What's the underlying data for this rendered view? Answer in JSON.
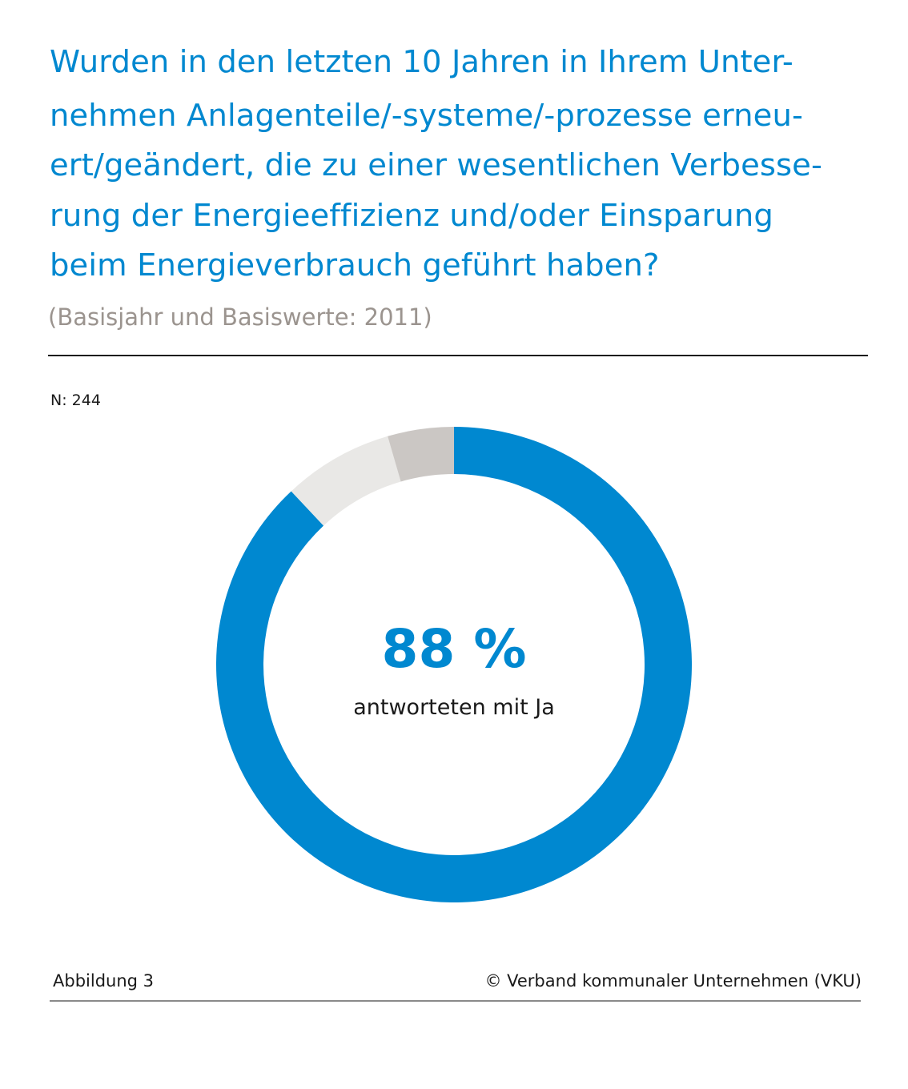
{
  "title_lines": [
    "Wurden in den letzten 10 Jahren in Ihrem Unter-",
    "nehmen Anlagenteile/-systeme/-prozesse erneu-",
    "ert/geändert, die zu einer wesentlichen Verbesse-",
    "rung der Energieeffizienz und/oder Einsparung",
    "beim Energieverbrauch geführt haben?"
  ],
  "subtitle": "(Basisjahr und Basiswerte: 2011)",
  "sample_size": "N: 244",
  "center": {
    "value": "88 %",
    "caption": "antworteten mit Ja"
  },
  "footer": {
    "figure_label": "Abbildung 3",
    "copyright": "© Verband kommunaler Unternehmen (VKU)"
  },
  "colors": {
    "title": "#0088d0",
    "subtitle": "#9b948f"
  },
  "chart_data": {
    "type": "pie",
    "variant": "donut",
    "start": "top",
    "direction": "clockwise",
    "slices": [
      {
        "value": 88,
        "color": "#0088d0"
      },
      {
        "value": 7.5,
        "color": "#e9e8e6"
      },
      {
        "value": 4.5,
        "color": "#cbc7c4"
      }
    ]
  }
}
